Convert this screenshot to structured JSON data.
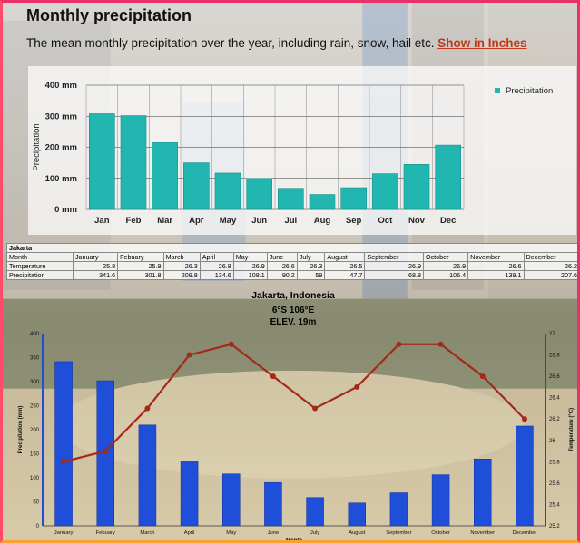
{
  "page": {
    "title": "Monthly precipitation",
    "subtitle": "The mean monthly precipitation over the year, including rain, snow, hail etc.",
    "link_label": "Show in Inches"
  },
  "table": {
    "location": "Jakarta",
    "row_labels": [
      "Month",
      "Temperature",
      "Precipitation"
    ],
    "months": [
      "January",
      "Febuary",
      "March",
      "April",
      "May",
      "June",
      "July",
      "August",
      "September",
      "October",
      "November",
      "December"
    ],
    "temperature": [
      "25.8",
      "25.9",
      "26.3",
      "26.8",
      "26.9",
      "26.6",
      "26.3",
      "26.5",
      "26.9",
      "26.9",
      "26.6",
      "26.2"
    ],
    "precipitation": [
      "341.6",
      "301.8",
      "209.8",
      "134.6",
      "108.1",
      "90.2",
      "59",
      "47.7",
      "68.8",
      "106.4",
      "139.1",
      "207.6"
    ]
  },
  "chart_data": [
    {
      "type": "bar",
      "categories": [
        "Jan",
        "Feb",
        "Mar",
        "Apr",
        "May",
        "Jun",
        "Jul",
        "Aug",
        "Sep",
        "Oct",
        "Nov",
        "Dec"
      ],
      "series": [
        {
          "name": "Precipitation",
          "values": [
            308,
            302,
            215,
            150,
            117,
            100,
            68,
            48,
            70,
            115,
            145,
            207
          ]
        }
      ],
      "ylabel": "Precipitation",
      "yticks": [
        "0 mm",
        "100 mm",
        "200 mm",
        "300 mm",
        "400 mm"
      ],
      "ylim": [
        0,
        400
      ],
      "grid": true,
      "legend": "top-right",
      "color": "#21b7b0"
    },
    {
      "type": "bar+line",
      "title": "Jakarta, Indonesia",
      "subtitle_lines": [
        "6°S 106°E",
        "ELEV. 19m"
      ],
      "categories": [
        "January",
        "Febuary",
        "March",
        "April",
        "May",
        "June",
        "July",
        "August",
        "September",
        "October",
        "November",
        "December"
      ],
      "bars": {
        "name": "Precipitation",
        "values": [
          341.6,
          301.8,
          209.8,
          134.6,
          108.1,
          90.2,
          59,
          47.7,
          68.8,
          106.4,
          139.1,
          207.6
        ],
        "color": "#1f4fd8"
      },
      "line": {
        "name": "Temperature",
        "values": [
          25.8,
          25.9,
          26.3,
          26.8,
          26.9,
          26.6,
          26.3,
          26.5,
          26.9,
          26.9,
          26.6,
          26.2
        ],
        "color": "#a32a1a"
      },
      "ylabel_left": "Precipitation (mm)",
      "ylabel_right": "Temperature (°C)",
      "xlabel": "Month",
      "ylim_left": [
        0,
        400
      ],
      "ylim_right": [
        25.2,
        27
      ],
      "yticks_left": [
        "0",
        "50",
        "100",
        "150",
        "200",
        "250",
        "300",
        "350",
        "400"
      ],
      "yticks_right": [
        "25.2",
        "25.4",
        "25.6",
        "25.8",
        "26",
        "26.2",
        "26.4",
        "26.6",
        "26.8",
        "27"
      ]
    }
  ]
}
